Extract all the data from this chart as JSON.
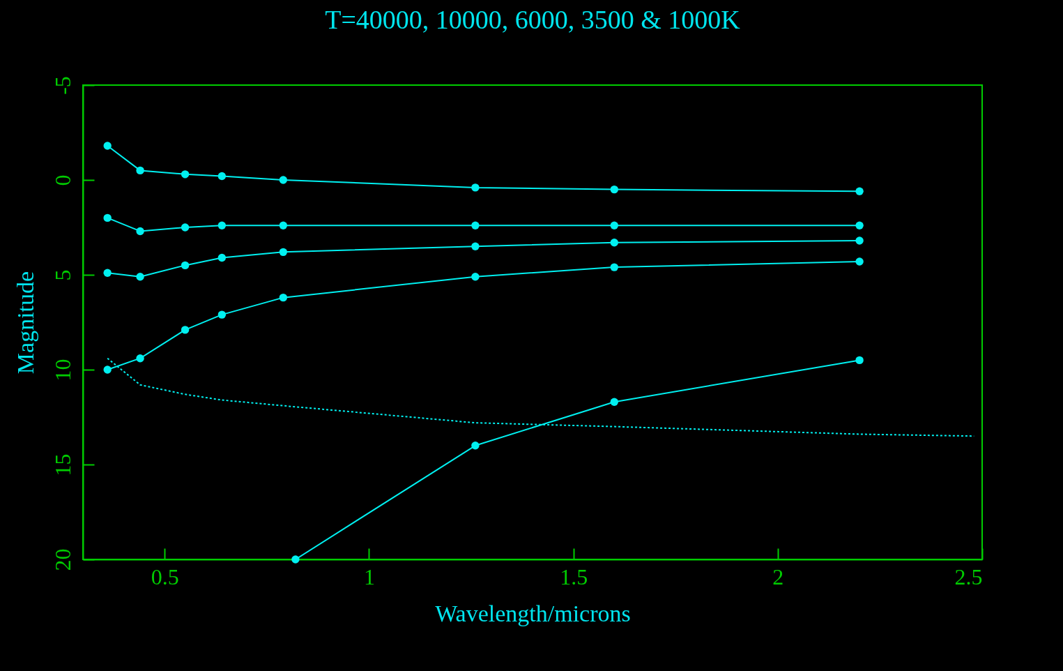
{
  "chart_data": {
    "type": "line",
    "title": "T=40000, 10000, 6000, 3500 & 1000K",
    "xlabel": "Wavelength/microns",
    "ylabel": "Magnitude",
    "xlim": [
      0.3,
      2.5
    ],
    "xticks": [
      0.5,
      1,
      1.5,
      2,
      2.5
    ],
    "ylim": [
      20,
      -5
    ],
    "yticks": [
      -5,
      0,
      5,
      10,
      15,
      20
    ],
    "grid": false,
    "marker": "circle",
    "series": [
      {
        "color": "#00f0f0",
        "x": [
          0.36,
          0.44,
          0.55,
          0.64,
          0.79,
          1.26,
          1.6,
          2.2
        ],
        "values": [
          -1.8,
          -0.5,
          -0.3,
          -0.2,
          0,
          0.4,
          0.5,
          0.6
        ]
      },
      {
        "color": "#00f0f0",
        "x": [
          0.36,
          0.44,
          0.55,
          0.64,
          0.79,
          1.26,
          1.6,
          2.2
        ],
        "values": [
          2.0,
          2.7,
          2.5,
          2.4,
          2.4,
          2.4,
          2.4,
          2.4
        ]
      },
      {
        "color": "#00f0f0",
        "x": [
          0.36,
          0.44,
          0.55,
          0.64,
          0.79,
          1.26,
          1.6,
          2.2
        ],
        "values": [
          4.9,
          5.1,
          4.5,
          4.1,
          3.8,
          3.5,
          3.3,
          3.2
        ]
      },
      {
        "color": "#00f0f0",
        "x": [
          0.36,
          0.44,
          0.55,
          0.64,
          0.79,
          1.26,
          1.6,
          2.2
        ],
        "values": [
          10.0,
          9.4,
          7.9,
          7.1,
          6.2,
          5.1,
          4.6,
          4.3
        ]
      },
      {
        "color": "#00f0f0",
        "x": [
          0.82,
          1.26,
          1.6,
          2.2
        ],
        "values": [
          20,
          14.0,
          11.7,
          9.5
        ]
      },
      {
        "color": "#00f0f0",
        "line_style": "dotted",
        "marker": "none",
        "x": [
          0.36,
          0.44,
          0.55,
          0.64,
          0.79,
          1.26,
          1.6,
          2.2,
          2.48
        ],
        "values": [
          9.4,
          10.8,
          11.3,
          11.6,
          11.9,
          12.8,
          13.0,
          13.4,
          13.5
        ]
      }
    ]
  }
}
